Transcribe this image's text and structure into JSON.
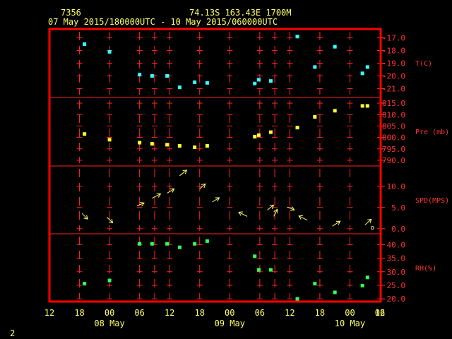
{
  "header": {
    "station_id": "7356",
    "location": "74.13S  163.43E  1700M",
    "period": "07 May 2015/180000UTC - 10 May 2015/060000UTC"
  },
  "footer": {
    "page_number": "2"
  },
  "colors": {
    "background": "#000000",
    "frame": "#ff0000",
    "grid": "#ff2222",
    "text_header": "#ffff66",
    "text_time": "#ffff66",
    "axis_text": "#ff3333",
    "temperature": "#33ffff",
    "pressure": "#ffff33",
    "wind": "#ffff66",
    "humidity": "#33ff55"
  },
  "chart_data": {
    "type": "scatter",
    "x_axis": {
      "unit": "hours after 07 May 2015 12 UTC",
      "range": [
        0,
        66
      ],
      "ticks": [
        {
          "x": 0,
          "label": "12"
        },
        {
          "x": 6,
          "label": "18"
        },
        {
          "x": 12,
          "label": "00"
        },
        {
          "x": 18,
          "label": "06"
        },
        {
          "x": 24,
          "label": "12"
        },
        {
          "x": 30,
          "label": "18"
        },
        {
          "x": 36,
          "label": "00"
        },
        {
          "x": 42,
          "label": "06"
        },
        {
          "x": 48,
          "label": "12"
        },
        {
          "x": 54,
          "label": "18"
        },
        {
          "x": 60,
          "label": "00"
        },
        {
          "x": 66,
          "label": "06"
        }
      ],
      "extra_right_label": "12",
      "date_labels": [
        {
          "x": 12,
          "label": "08 May"
        },
        {
          "x": 36,
          "label": "09 May"
        },
        {
          "x": 60,
          "label": "10 May"
        }
      ]
    },
    "grid_x": [
      6,
      12,
      18,
      21,
      24,
      30,
      36,
      42,
      45,
      48,
      54,
      60,
      66
    ],
    "panels": [
      {
        "key": "temperature",
        "label": "T(C)",
        "ylim": [
          -21.7,
          -16.3
        ],
        "ticks": [
          "-17.0",
          "-18.0",
          "-19.0",
          "-20.0",
          "-21.0"
        ],
        "tick_values": [
          -17,
          -18,
          -19,
          -20,
          -21
        ],
        "points": [
          {
            "x": 7,
            "y": -17.5
          },
          {
            "x": 12,
            "y": -18.1
          },
          {
            "x": 18,
            "y": -19.9
          },
          {
            "x": 20.5,
            "y": -20.0
          },
          {
            "x": 23.5,
            "y": -20.0
          },
          {
            "x": 26,
            "y": -20.9
          },
          {
            "x": 29,
            "y": -20.5
          },
          {
            "x": 31.5,
            "y": -20.55
          },
          {
            "x": 41,
            "y": -20.6
          },
          {
            "x": 41.8,
            "y": -20.3
          },
          {
            "x": 44.2,
            "y": -20.4
          },
          {
            "x": 49.5,
            "y": -16.9
          },
          {
            "x": 53,
            "y": -19.3
          },
          {
            "x": 57,
            "y": -17.7
          },
          {
            "x": 62.5,
            "y": -19.8
          },
          {
            "x": 63.5,
            "y": -19.3
          }
        ]
      },
      {
        "key": "pressure",
        "label": "Pre (mb)",
        "ylim": [
          787.5,
          817.5
        ],
        "ticks": [
          "815.0",
          "810.0",
          "805.0",
          "800.0",
          "795.0",
          "790.0"
        ],
        "tick_values": [
          815,
          810,
          805,
          800,
          795,
          790
        ],
        "points": [
          {
            "x": 7,
            "y": 801.5
          },
          {
            "x": 12,
            "y": 799.0
          },
          {
            "x": 18,
            "y": 797.7
          },
          {
            "x": 20.5,
            "y": 797.2
          },
          {
            "x": 23.5,
            "y": 796.8
          },
          {
            "x": 26,
            "y": 796.3
          },
          {
            "x": 29,
            "y": 795.7
          },
          {
            "x": 31.5,
            "y": 796.3
          },
          {
            "x": 41,
            "y": 800.3
          },
          {
            "x": 41.8,
            "y": 801.0
          },
          {
            "x": 44.2,
            "y": 802.3
          },
          {
            "x": 49.5,
            "y": 804.3
          },
          {
            "x": 53,
            "y": 809.0
          },
          {
            "x": 57,
            "y": 811.7
          },
          {
            "x": 62.5,
            "y": 813.8
          },
          {
            "x": 63.5,
            "y": 813.8
          }
        ]
      },
      {
        "key": "wind",
        "label": "SPD(MPS)",
        "ylim": [
          -1.2,
          14.8
        ],
        "ticks": [
          "10.0",
          "5.0",
          "0.0"
        ],
        "tick_values": [
          10,
          5,
          0
        ],
        "barbs": [
          {
            "x": 6.5,
            "y": 3.6,
            "dx": 8,
            "dy": 8
          },
          {
            "x": 11.5,
            "y": 2.7,
            "dx": 8,
            "dy": 8
          },
          {
            "x": 17.5,
            "y": 5.4,
            "dx": 10,
            "dy": -4
          },
          {
            "x": 20.5,
            "y": 7.2,
            "dx": 12,
            "dy": -6
          },
          {
            "x": 23.5,
            "y": 8.4,
            "dx": 10,
            "dy": -6
          },
          {
            "x": 26,
            "y": 12.5,
            "dx": 10,
            "dy": -8
          },
          {
            "x": 30,
            "y": 9.4,
            "dx": 8,
            "dy": -7
          },
          {
            "x": 32.5,
            "y": 6.3,
            "dx": 10,
            "dy": -6
          },
          {
            "x": 39.5,
            "y": 2.9,
            "dx": -12,
            "dy": -6
          },
          {
            "x": 43.5,
            "y": 4.4,
            "dx": 9,
            "dy": -7
          },
          {
            "x": 44.8,
            "y": 2.9,
            "dx": 5,
            "dy": -10
          },
          {
            "x": 47.5,
            "y": 5.1,
            "dx": 10,
            "dy": 4
          },
          {
            "x": 51.5,
            "y": 2.0,
            "dx": -12,
            "dy": -6
          },
          {
            "x": 56.5,
            "y": 0.6,
            "dx": 11,
            "dy": -7
          },
          {
            "x": 63,
            "y": 0.9,
            "dx": 9,
            "dy": -8
          },
          {
            "x": 64.5,
            "y": 0.2,
            "dx": 0,
            "dy": 0
          }
        ]
      },
      {
        "key": "humidity",
        "label": "RH(%)",
        "ylim": [
          19.0,
          44.0
        ],
        "ticks": [
          "40.0",
          "35.0",
          "30.0",
          "25.0",
          "20.0"
        ],
        "tick_values": [
          40,
          35,
          30,
          25,
          20
        ],
        "points": [
          {
            "x": 7,
            "y": 25.6
          },
          {
            "x": 12,
            "y": 26.8
          },
          {
            "x": 18,
            "y": 40.3
          },
          {
            "x": 20.5,
            "y": 40.3
          },
          {
            "x": 23.5,
            "y": 40.3
          },
          {
            "x": 26,
            "y": 39.0
          },
          {
            "x": 29,
            "y": 40.3
          },
          {
            "x": 31.5,
            "y": 41.3
          },
          {
            "x": 41,
            "y": 35.7
          },
          {
            "x": 41.8,
            "y": 30.7
          },
          {
            "x": 44.2,
            "y": 30.7
          },
          {
            "x": 49.5,
            "y": 20.0
          },
          {
            "x": 53,
            "y": 25.6
          },
          {
            "x": 57,
            "y": 22.4
          },
          {
            "x": 62.5,
            "y": 24.9
          },
          {
            "x": 63.5,
            "y": 27.9
          }
        ]
      }
    ]
  }
}
